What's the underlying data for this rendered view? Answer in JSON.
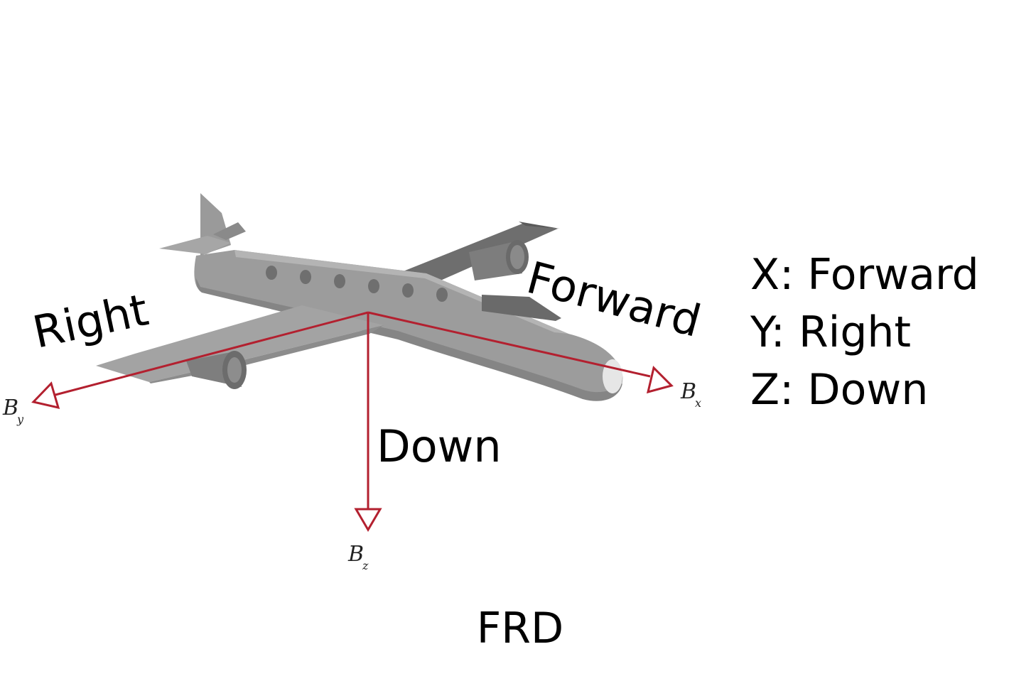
{
  "diagram": {
    "title": "FRD",
    "colors": {
      "axis": "#b3202f",
      "plane_body": "#9a9a9a",
      "plane_dark": "#7a7a7a",
      "plane_light": "#b0b0b0"
    },
    "directions": {
      "forward": "Forward",
      "right": "Right",
      "down": "Down"
    },
    "axes": {
      "x": {
        "symbol": "B",
        "subscript": "x"
      },
      "y": {
        "symbol": "B",
        "subscript": "y"
      },
      "z": {
        "symbol": "B",
        "subscript": "z"
      }
    },
    "legend": [
      "X: Forward",
      "Y: Right",
      "Z: Down"
    ]
  }
}
